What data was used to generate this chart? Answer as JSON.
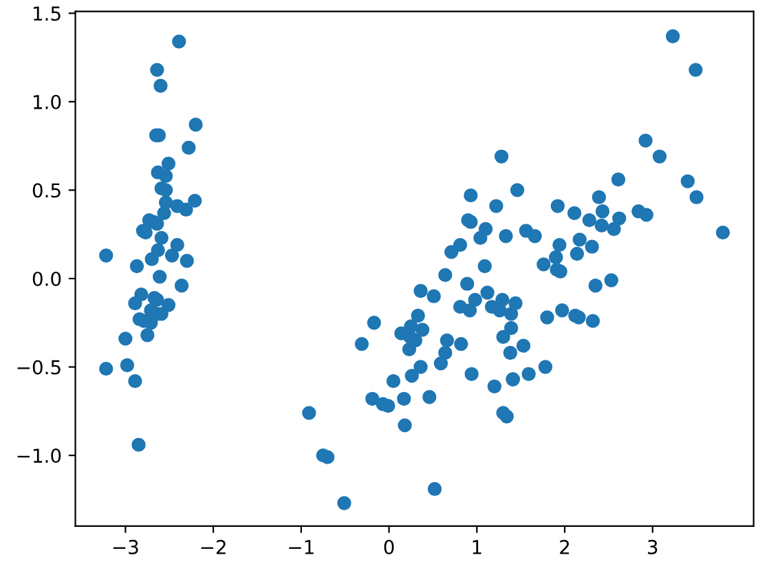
{
  "chart_data": {
    "type": "scatter",
    "marker": "circle",
    "grid": false,
    "xlim": [
      -3.57,
      4.15
    ],
    "ylim": [
      -1.4,
      1.51
    ],
    "xticks": [
      {
        "value": -3,
        "label": "−3"
      },
      {
        "value": -2,
        "label": "−2"
      },
      {
        "value": -1,
        "label": "−1"
      },
      0,
      1,
      2,
      3
    ],
    "yticks": [
      {
        "value": -1,
        "label": "−1.0"
      },
      {
        "value": -0.5,
        "label": "−0.5"
      },
      {
        "value": 0,
        "label": "0.0"
      },
      0.5,
      {
        "value": 1,
        "label": "1.0"
      },
      1.5
    ],
    "series": [
      {
        "color": "#1f77b4",
        "x": [
          -2.68,
          -2.71,
          -2.89,
          -2.75,
          -2.73,
          -2.28,
          -2.82,
          -2.63,
          -2.89,
          -2.67,
          -2.51,
          -2.61,
          -2.79,
          -3.22,
          -2.64,
          -2.39,
          -2.62,
          -2.2,
          -2.59,
          -2.31,
          -2.54,
          -3.22,
          -2.3,
          -2.36,
          -2.51,
          -2.47,
          -2.56,
          -2.64,
          -2.63,
          -2.59,
          -2.41,
          -2.65,
          -2.6,
          -2.64,
          -2.87,
          -2.63,
          -2.8,
          -2.98,
          -2.59,
          -2.77,
          -2.85,
          -3.0,
          -2.41,
          -2.21,
          -2.71,
          -2.54,
          -2.84,
          -2.54,
          -2.7,
          1.28,
          0.93,
          1.46,
          0.18,
          1.09,
          0.64,
          1.1,
          -0.75,
          1.04,
          -0.01,
          -0.51,
          0.51,
          0.26,
          0.98,
          -0.17,
          0.93,
          0.66,
          0.24,
          0.94,
          0.05,
          1.12,
          0.36,
          1.3,
          0.92,
          0.71,
          0.9,
          1.33,
          1.56,
          0.81,
          -0.31,
          -0.07,
          -0.19,
          0.14,
          1.38,
          0.59,
          0.81,
          1.22,
          0.82,
          0.25,
          0.17,
          0.46,
          0.89,
          0.23,
          -0.7,
          0.36,
          0.33,
          0.38,
          0.64,
          -0.91,
          0.3,
          2.53,
          1.41,
          2.62,
          1.97,
          2.35,
          3.4,
          0.52,
          2.93,
          2.32,
          2.92,
          1.66,
          1.8,
          2.17,
          1.34,
          1.59,
          1.9,
          1.95,
          3.49,
          3.8,
          1.3,
          2.43,
          1.2,
          3.5,
          1.39,
          2.28,
          2.61,
          1.26,
          1.29,
          2.12,
          2.39,
          2.84,
          3.23,
          2.16,
          1.44,
          1.78,
          3.08,
          2.14,
          1.91,
          1.17,
          2.11,
          2.31,
          1.92,
          1.41,
          2.56,
          2.42,
          1.94,
          1.53,
          1.76,
          1.9,
          1.39
        ],
        "values": [
          0.32,
          -0.18,
          -0.14,
          -0.32,
          0.33,
          0.74,
          -0.09,
          0.16,
          -0.58,
          -0.11,
          0.65,
          0.01,
          -0.24,
          -0.51,
          1.18,
          1.34,
          0.81,
          0.87,
          0.51,
          0.39,
          0.43,
          0.13,
          0.1,
          -0.04,
          -0.15,
          0.13,
          0.37,
          0.31,
          -0.2,
          -0.2,
          0.41,
          0.81,
          1.09,
          -0.12,
          0.07,
          0.6,
          0.27,
          -0.49,
          0.23,
          0.26,
          -0.94,
          -0.34,
          0.19,
          0.44,
          -0.25,
          0.5,
          -0.23,
          0.58,
          0.11,
          0.69,
          0.32,
          0.5,
          -0.83,
          0.07,
          -0.42,
          0.28,
          -1.0,
          0.23,
          -0.72,
          -1.27,
          -0.1,
          -0.55,
          -0.12,
          -0.25,
          0.47,
          -0.35,
          -0.33,
          -0.54,
          -0.58,
          -0.08,
          -0.07,
          -0.33,
          -0.18,
          0.15,
          0.33,
          0.24,
          0.27,
          -0.16,
          -0.37,
          -0.71,
          -0.68,
          -0.31,
          -0.42,
          -0.48,
          0.19,
          0.41,
          -0.37,
          -0.27,
          -0.68,
          -0.67,
          -0.03,
          -0.4,
          -1.01,
          -0.5,
          -0.21,
          -0.29,
          0.02,
          -0.76,
          -0.35,
          -0.01,
          -0.57,
          0.34,
          -0.18,
          -0.04,
          0.55,
          -1.19,
          0.36,
          -0.24,
          0.78,
          0.24,
          -0.22,
          0.22,
          -0.78,
          -0.54,
          0.12,
          0.04,
          1.18,
          0.26,
          -0.76,
          0.38,
          -0.61,
          0.46,
          -0.2,
          0.33,
          0.56,
          -0.18,
          -0.12,
          -0.21,
          0.46,
          0.38,
          1.37,
          -0.22,
          -0.14,
          -0.5,
          0.69,
          0.14,
          0.05,
          -0.16,
          0.37,
          0.18,
          0.41,
          -0.57,
          0.28,
          0.3,
          0.19,
          -0.38,
          0.08,
          0.12,
          -0.28
        ]
      }
    ]
  }
}
